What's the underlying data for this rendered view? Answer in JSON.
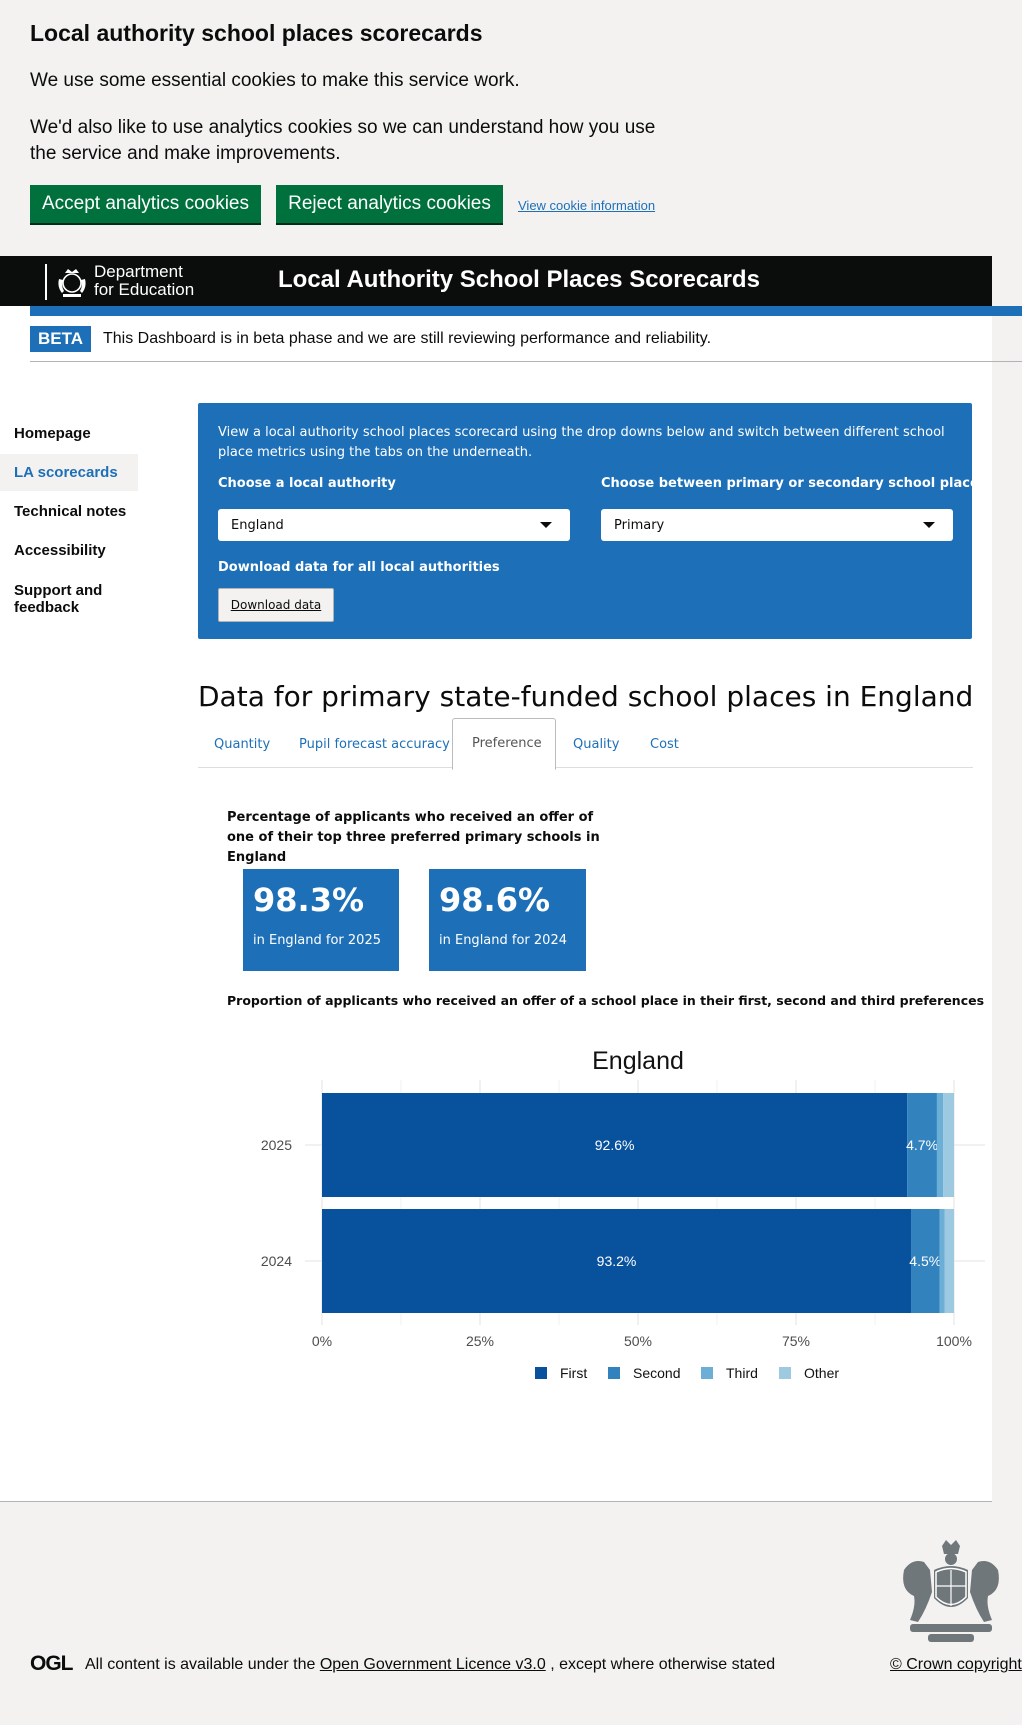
{
  "cookie_banner": {
    "title": "Local authority school places scorecards",
    "p1": "We use some essential cookies to make this service work.",
    "p2": "We'd also like to use analytics cookies so we can understand how you use the service and make improvements.",
    "accept": "Accept analytics cookies",
    "reject": "Reject analytics cookies",
    "view_info": "View cookie information"
  },
  "header": {
    "logo_line1": "Department",
    "logo_line2": "for Education",
    "title": "Local Authority School Places Scorecards"
  },
  "beta": {
    "tag": "BETA",
    "text": "This Dashboard is in beta phase and we are still reviewing performance and reliability."
  },
  "sidebar": {
    "homepage": "Homepage",
    "la_scorecards": "LA scorecards",
    "technical_notes": "Technical notes",
    "accessibility": "Accessibility",
    "support_line1": "Support and",
    "support_line2": "feedback"
  },
  "panel": {
    "intro": "View a local authority school places scorecard using the drop downs below and switch between different school place metrics using the tabs on the underneath.",
    "la_label": "Choose a local authority",
    "la_value": "England",
    "phase_label": "Choose between primary or secondary school places",
    "phase_value": "Primary",
    "download_label": "Download data for all local authorities",
    "download_button": "Download data"
  },
  "main": {
    "heading": "Data for primary state-funded school places in England",
    "tabs": {
      "quantity": "Quantity",
      "pupil_forecast": "Pupil forecast accuracy",
      "preference": "Preference",
      "quality": "Quality",
      "cost": "Cost"
    },
    "kpi_caption": "Percentage of applicants who received an offer of one of their top three preferred primary schools in England",
    "kpi1": {
      "value": "98.3%",
      "label": "in England for 2025"
    },
    "kpi2": {
      "value": "98.6%",
      "label": "in England for 2024"
    },
    "chart_caption": "Proportion of applicants who received an offer of a school place in their first, second and third preferences"
  },
  "colors": {
    "first": "#08519c",
    "second": "#3182bd",
    "third": "#6baed6",
    "other": "#9ecae1"
  },
  "chart_data": {
    "type": "bar",
    "orientation": "horizontal",
    "stacked": true,
    "title": "England",
    "categories": [
      "2025",
      "2024"
    ],
    "series": [
      {
        "name": "First",
        "values": [
          92.6,
          93.2
        ],
        "labels": [
          "92.6%",
          "93.2%"
        ]
      },
      {
        "name": "Second",
        "values": [
          4.7,
          4.5
        ],
        "labels": [
          "4.7%",
          "4.5%"
        ]
      },
      {
        "name": "Third",
        "values": [
          1.0,
          0.8
        ],
        "labels": [
          "",
          ""
        ]
      },
      {
        "name": "Other",
        "values": [
          1.7,
          1.5
        ],
        "labels": [
          "",
          ""
        ]
      }
    ],
    "xlim": [
      0,
      100
    ],
    "xticks": [
      "0%",
      "25%",
      "50%",
      "75%",
      "100%"
    ],
    "grid": true,
    "legend": "bottom"
  },
  "footer": {
    "ogl": "OGL",
    "text_before": "All content is available under the",
    "licence_link": "Open Government Licence v3.0",
    "text_after": ", except where otherwise stated",
    "crown": "© Crown copyright"
  }
}
